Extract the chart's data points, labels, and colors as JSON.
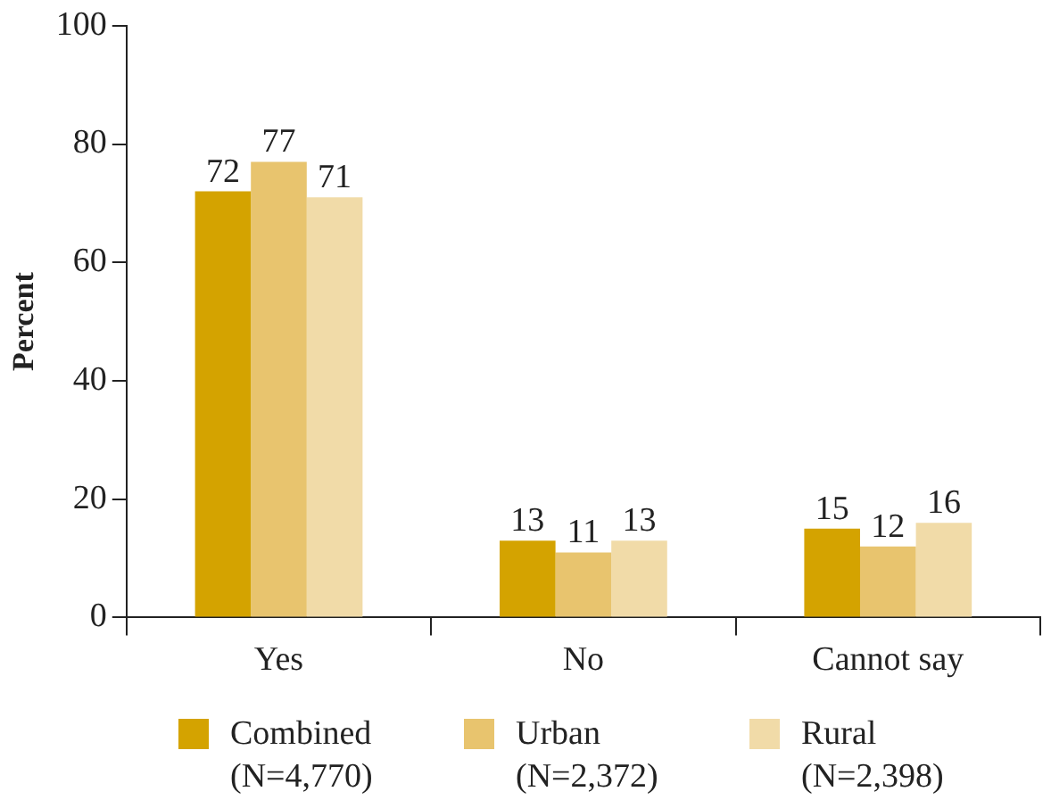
{
  "chart_data": {
    "type": "bar",
    "ylabel": "Percent",
    "categories": [
      "Yes",
      "No",
      "Cannot say"
    ],
    "series": [
      {
        "name": "Combined (N=4,770)",
        "color": "#d4a300",
        "values": [
          72,
          13,
          15
        ]
      },
      {
        "name": "Urban (N=2,372)",
        "color": "#e8c46e",
        "values": [
          77,
          11,
          12
        ]
      },
      {
        "name": "Rural (N=2,398)",
        "color": "#f1dba8",
        "values": [
          71,
          13,
          16
        ]
      }
    ],
    "ylim": [
      0,
      100
    ],
    "yticks": [
      0,
      20,
      40,
      60,
      80,
      100
    ],
    "grid": false,
    "legend": "bottom",
    "data_labels": true
  }
}
